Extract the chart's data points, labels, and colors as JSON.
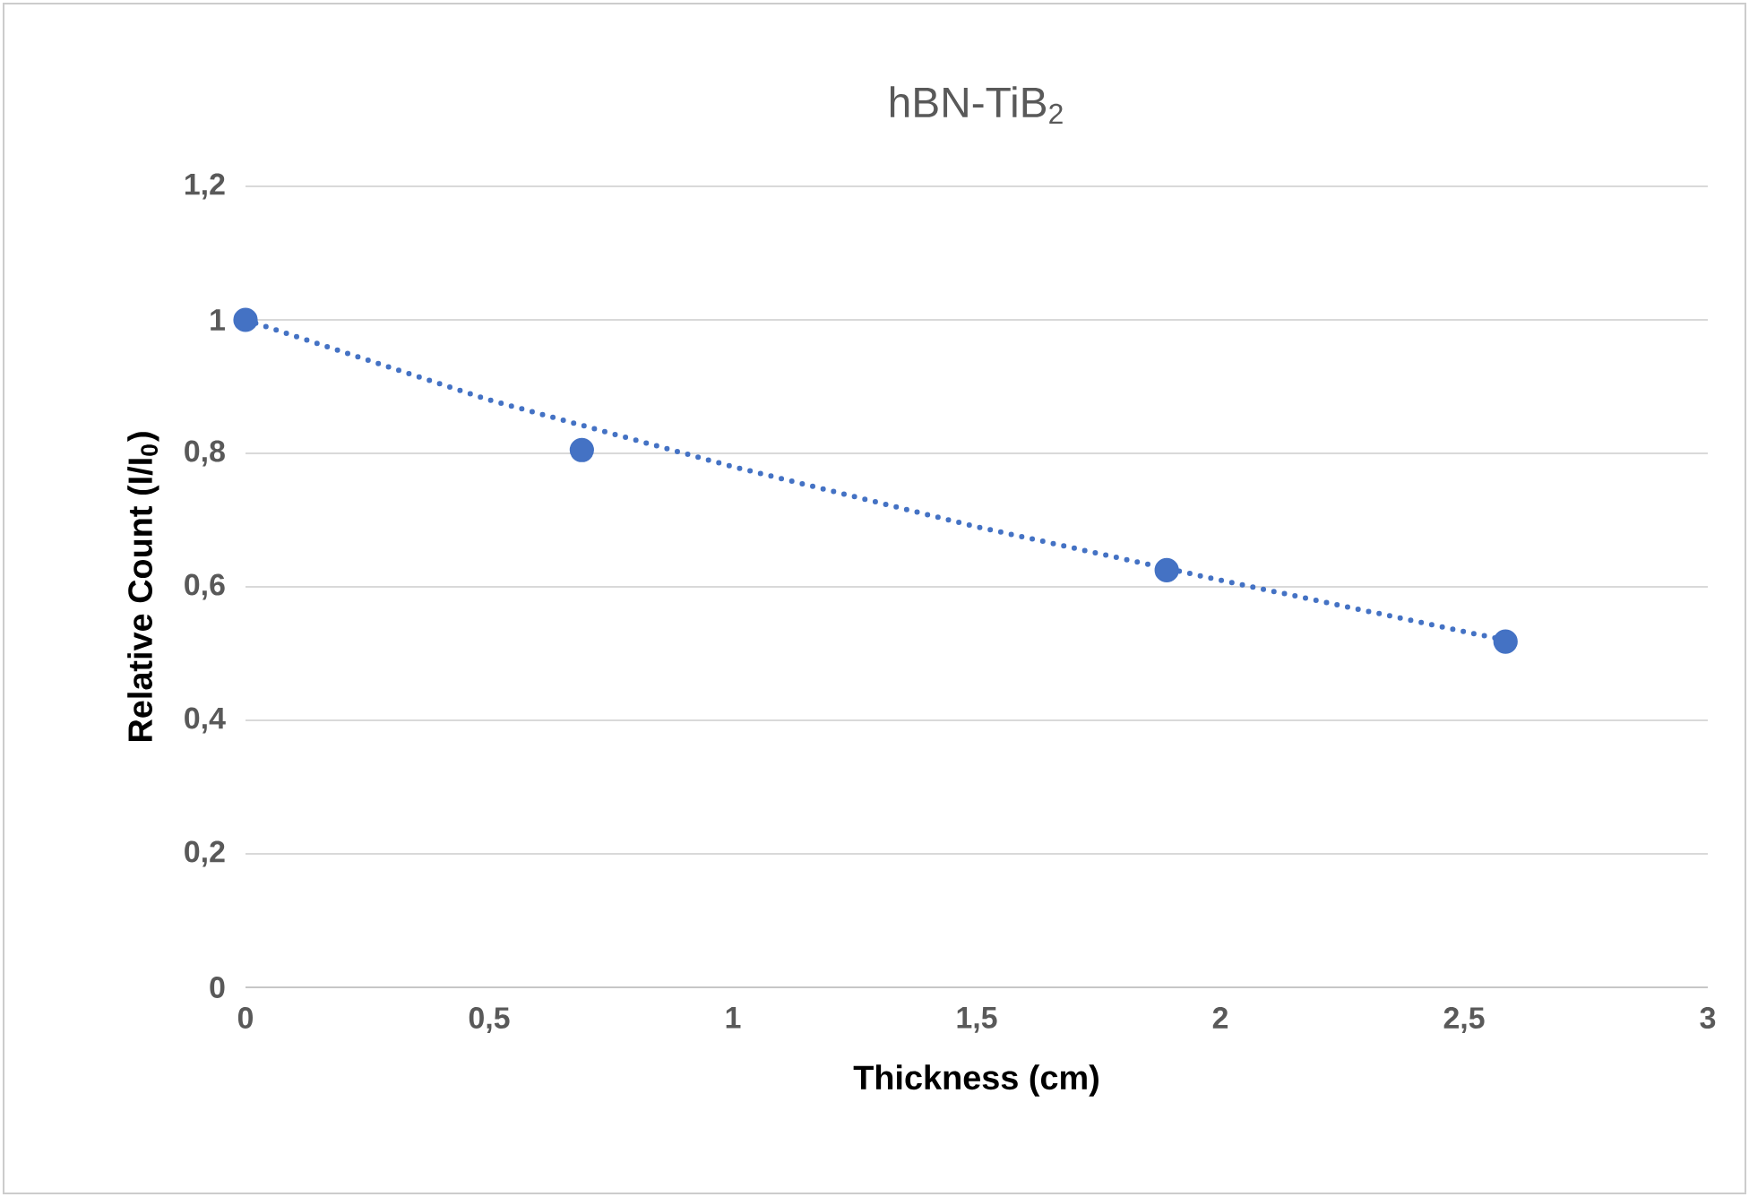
{
  "chart_data": {
    "type": "scatter",
    "title": "hBN-TiB$_{2}$",
    "xlabel": "Thickness (cm)",
    "ylabel": "Relative Count (I/I$_{0}$)",
    "xlim": [
      0,
      3
    ],
    "ylim": [
      0,
      1.2
    ],
    "xticks": [
      0,
      {
        "value": 0.5,
        "label": "0,5"
      },
      1,
      {
        "value": 1.5,
        "label": "1,5"
      },
      2,
      {
        "value": 2.5,
        "label": "2,5"
      },
      3
    ],
    "yticks": [
      0,
      {
        "value": 0.2,
        "label": "0,2"
      },
      {
        "value": 0.4,
        "label": "0,4"
      },
      {
        "value": 0.6,
        "label": "0,6"
      },
      {
        "value": 0.8,
        "label": "0,8"
      },
      1,
      {
        "value": 1.2,
        "label": "1,2"
      }
    ],
    "grid": "y",
    "series": [
      {
        "color": "#4472c4",
        "marker": "circle",
        "x": [
          0,
          0.69,
          1.89,
          2.585
        ],
        "values": [
          1,
          0.805,
          0.625,
          0.518
        ]
      },
      {
        "type": "line",
        "color": "#4472c4",
        "marker": "none",
        "line_style": "dotted",
        "x": [
          0,
          0.5,
          1,
          1.5,
          2,
          2.585
        ],
        "values": [
          1,
          0.88,
          0.78,
          0.69,
          0.61,
          0.52
        ]
      }
    ]
  }
}
